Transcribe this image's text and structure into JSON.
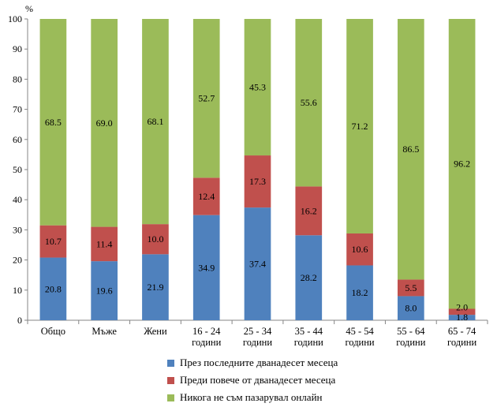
{
  "chart_data": {
    "type": "bar",
    "stacked": true,
    "unit_label": "%",
    "ylim": [
      0,
      100
    ],
    "yticks": [
      0,
      10,
      20,
      30,
      40,
      50,
      60,
      70,
      80,
      90,
      100
    ],
    "categories": [
      [
        "Общо"
      ],
      [
        "Мъже"
      ],
      [
        "Жени"
      ],
      [
        "16 - 24",
        "години"
      ],
      [
        "25 - 34",
        "години"
      ],
      [
        "35 - 44",
        "години"
      ],
      [
        "45 - 54",
        "години"
      ],
      [
        "55 - 64",
        "години"
      ],
      [
        "65 - 74",
        "години"
      ]
    ],
    "series": [
      {
        "name": "През последните дванадесет месеца",
        "color": "#4F81BD",
        "values": [
          20.8,
          19.6,
          21.9,
          34.9,
          37.4,
          28.2,
          18.2,
          8.0,
          1.8
        ],
        "labels": [
          "20.8",
          "19.6",
          "21.9",
          "34.9",
          "37.4",
          "28.2",
          "18.2",
          "8.0",
          "1.8"
        ]
      },
      {
        "name": "Преди повече от дванадесет месеца",
        "color": "#C0504D",
        "values": [
          10.7,
          11.4,
          10.0,
          12.4,
          17.3,
          16.2,
          10.6,
          5.5,
          2.0
        ],
        "labels": [
          "10.7",
          "11.4",
          "10.0",
          "12.4",
          "17.3",
          "16.2",
          "10.6",
          "5.5",
          "2.0"
        ]
      },
      {
        "name": "Никога не съм пазарувал онлайн",
        "color": "#9BBB59",
        "values": [
          68.5,
          69.0,
          68.1,
          52.7,
          45.3,
          55.6,
          71.2,
          86.5,
          96.2
        ],
        "labels": [
          "68.5",
          "69.0",
          "68.1",
          "52.7",
          "45.3",
          "55.6",
          "71.2",
          "86.5",
          "96.2"
        ]
      }
    ],
    "legend_position": "bottom",
    "grid": false
  }
}
